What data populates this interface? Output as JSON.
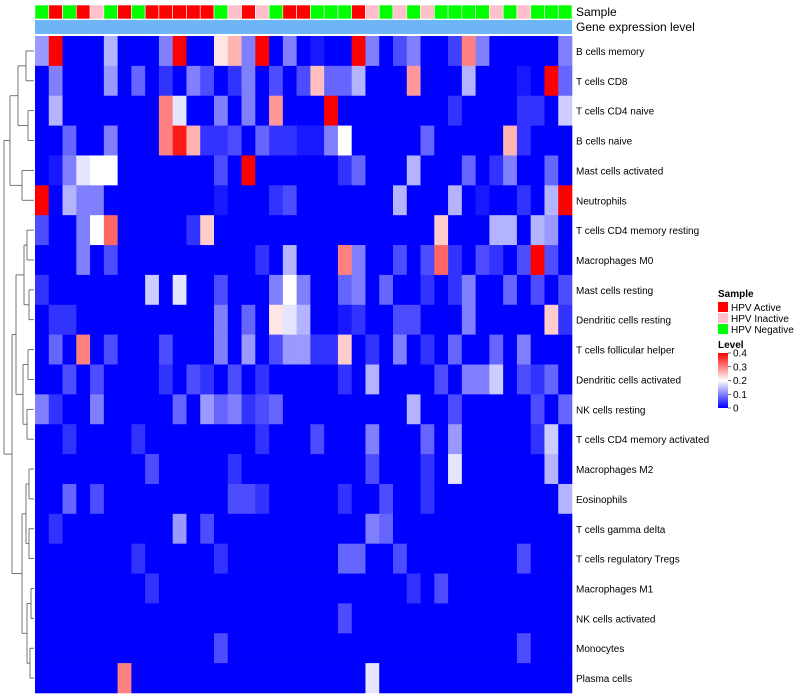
{
  "chart_data": {
    "type": "heatmap",
    "color_scale": {
      "low": "#0000FF",
      "mid": "#FFFFFF",
      "high": "#FF0000",
      "min": 0,
      "max": 0.4,
      "midpoint": 0.2
    },
    "annotations": {
      "sample_label": "Sample",
      "group_label": "Gene expression level",
      "group_color": "#6EB5F5",
      "sample_colors": {
        "HPV Active": "#FF0000",
        "HPV Inactive": "#FFC0CB",
        "HPV Negative": "#00FF00"
      },
      "samples": [
        "HPV Negative",
        "HPV Active",
        "HPV Negative",
        "HPV Active",
        "HPV Inactive",
        "HPV Negative",
        "HPV Active",
        "HPV Negative",
        "HPV Active",
        "HPV Active",
        "HPV Active",
        "HPV Active",
        "HPV Active",
        "HPV Negative",
        "HPV Inactive",
        "HPV Active",
        "HPV Inactive",
        "HPV Negative",
        "HPV Active",
        "HPV Active",
        "HPV Negative",
        "HPV Negative",
        "HPV Negative",
        "HPV Active",
        "HPV Inactive",
        "HPV Negative",
        "HPV Inactive",
        "HPV Negative",
        "HPV Inactive",
        "HPV Negative",
        "HPV Negative",
        "HPV Negative",
        "HPV Negative",
        "HPV Inactive",
        "HPV Negative",
        "HPV Inactive",
        "HPV Negative",
        "HPV Negative",
        "HPV Negative"
      ]
    },
    "rows": [
      "B cells memory",
      "T cells CD8",
      "T cells CD4 naive",
      "B cells naive",
      "Mast cells activated",
      "Neutrophils",
      "T cells CD4 memory resting",
      "Macrophages M0",
      "Mast cells resting",
      "Dendritic cells resting",
      "T cells follicular helper",
      "Dendritic cells activated",
      "NK cells resting",
      "T cells CD4 memory activated",
      "Macrophages M2",
      "Eosinophils",
      "T cells gamma delta",
      "T cells regulatory  Tregs",
      "Macrophages M1",
      "NK cells activated",
      "Monocytes",
      "Plasma cells"
    ],
    "values": [
      [
        0.12,
        0.4,
        0.0,
        0.0,
        0.0,
        0.14,
        0.0,
        0.0,
        0.0,
        0.1,
        0.4,
        0.0,
        0.0,
        0.22,
        0.26,
        0.1,
        0.4,
        0.0,
        0.1,
        0.0,
        0.02,
        0.0,
        0.0,
        0.4,
        0.1,
        0.0,
        0.06,
        0.1,
        0.0,
        0.0,
        0.05,
        0.3,
        0.1,
        0.0,
        0.0,
        0.0,
        0.0,
        0.0,
        0.1
      ],
      [
        0.0,
        0.1,
        0.0,
        0.0,
        0.0,
        0.12,
        0.0,
        0.08,
        0.0,
        0.04,
        0.0,
        0.1,
        0.06,
        0.0,
        0.04,
        0.1,
        0.0,
        0.06,
        0.0,
        0.06,
        0.25,
        0.08,
        0.08,
        0.14,
        0.0,
        0.0,
        0.0,
        0.28,
        0.0,
        0.0,
        0.0,
        0.14,
        0.0,
        0.0,
        0.0,
        0.02,
        0.0,
        0.4,
        0.08
      ],
      [
        0.0,
        0.14,
        0.0,
        0.0,
        0.0,
        0.0,
        0.0,
        0.0,
        0.0,
        0.3,
        0.18,
        0.0,
        0.0,
        0.1,
        0.0,
        0.1,
        0.0,
        0.28,
        0.0,
        0.0,
        0.0,
        0.4,
        0.0,
        0.0,
        0.0,
        0.0,
        0.0,
        0.0,
        0.0,
        0.0,
        0.04,
        0.0,
        0.0,
        0.0,
        0.0,
        0.04,
        0.04,
        0.0,
        0.16
      ],
      [
        0.0,
        0.0,
        0.08,
        0.0,
        0.0,
        0.1,
        0.0,
        0.0,
        0.0,
        0.3,
        0.38,
        0.26,
        0.04,
        0.04,
        0.06,
        0.0,
        0.08,
        0.04,
        0.04,
        0.02,
        0.02,
        0.1,
        0.2,
        0.0,
        0.0,
        0.0,
        0.0,
        0.0,
        0.08,
        0.0,
        0.0,
        0.0,
        0.0,
        0.0,
        0.26,
        0.04,
        0.0,
        0.0,
        0.0
      ],
      [
        0.0,
        0.02,
        0.1,
        0.18,
        0.2,
        0.2,
        0.0,
        0.0,
        0.0,
        0.0,
        0.0,
        0.0,
        0.0,
        0.06,
        0.0,
        0.4,
        0.0,
        0.0,
        0.0,
        0.0,
        0.0,
        0.0,
        0.04,
        0.08,
        0.0,
        0.0,
        0.0,
        0.14,
        0.0,
        0.0,
        0.0,
        0.08,
        0.0,
        0.04,
        0.1,
        0.0,
        0.0,
        0.08,
        0.0
      ],
      [
        0.4,
        0.0,
        0.14,
        0.1,
        0.1,
        0.0,
        0.0,
        0.0,
        0.0,
        0.0,
        0.0,
        0.0,
        0.0,
        0.02,
        0.0,
        0.0,
        0.0,
        0.04,
        0.06,
        0.0,
        0.0,
        0.0,
        0.0,
        0.0,
        0.0,
        0.0,
        0.14,
        0.0,
        0.0,
        0.0,
        0.14,
        0.0,
        0.02,
        0.0,
        0.0,
        0.04,
        0.0,
        0.14,
        0.4
      ],
      [
        0.06,
        0.0,
        0.0,
        0.1,
        0.2,
        0.32,
        0.0,
        0.0,
        0.0,
        0.0,
        0.0,
        0.04,
        0.24,
        0.0,
        0.0,
        0.0,
        0.0,
        0.0,
        0.0,
        0.0,
        0.0,
        0.0,
        0.0,
        0.0,
        0.0,
        0.0,
        0.0,
        0.0,
        0.0,
        0.24,
        0.0,
        0.0,
        0.0,
        0.14,
        0.14,
        0.0,
        0.14,
        0.12,
        0.0
      ],
      [
        0.0,
        0.0,
        0.0,
        0.1,
        0.0,
        0.06,
        0.0,
        0.0,
        0.0,
        0.0,
        0.0,
        0.0,
        0.0,
        0.0,
        0.0,
        0.0,
        0.04,
        0.0,
        0.14,
        0.0,
        0.0,
        0.0,
        0.3,
        0.1,
        0.0,
        0.0,
        0.06,
        0.0,
        0.06,
        0.32,
        0.04,
        0.0,
        0.06,
        0.04,
        0.0,
        0.06,
        0.4,
        0.06,
        0.0
      ],
      [
        0.04,
        0.0,
        0.0,
        0.0,
        0.0,
        0.0,
        0.0,
        0.0,
        0.16,
        0.0,
        0.18,
        0.0,
        0.0,
        0.06,
        0.0,
        0.0,
        0.0,
        0.1,
        0.2,
        0.1,
        0.0,
        0.0,
        0.08,
        0.1,
        0.0,
        0.08,
        0.0,
        0.0,
        0.04,
        0.0,
        0.04,
        0.1,
        0.0,
        0.0,
        0.08,
        0.0,
        0.06,
        0.0,
        0.06
      ],
      [
        0.0,
        0.04,
        0.04,
        0.0,
        0.0,
        0.0,
        0.0,
        0.0,
        0.0,
        0.0,
        0.0,
        0.0,
        0.0,
        0.1,
        0.0,
        0.08,
        0.0,
        0.22,
        0.18,
        0.14,
        0.0,
        0.0,
        0.02,
        0.04,
        0.0,
        0.0,
        0.06,
        0.06,
        0.0,
        0.0,
        0.0,
        0.1,
        0.0,
        0.0,
        0.0,
        0.0,
        0.0,
        0.24,
        0.04
      ],
      [
        0.0,
        0.08,
        0.0,
        0.3,
        0.0,
        0.06,
        0.0,
        0.0,
        0.0,
        0.06,
        0.0,
        0.0,
        0.0,
        0.1,
        0.0,
        0.12,
        0.0,
        0.06,
        0.12,
        0.12,
        0.04,
        0.04,
        0.24,
        0.0,
        0.04,
        0.0,
        0.1,
        0.0,
        0.04,
        0.0,
        0.08,
        0.0,
        0.0,
        0.08,
        0.0,
        0.1,
        0.0,
        0.0,
        0.0
      ],
      [
        0.0,
        0.0,
        0.06,
        0.0,
        0.06,
        0.0,
        0.0,
        0.0,
        0.0,
        0.04,
        0.0,
        0.06,
        0.04,
        0.0,
        0.06,
        0.0,
        0.04,
        0.0,
        0.0,
        0.0,
        0.0,
        0.0,
        0.04,
        0.0,
        0.14,
        0.0,
        0.0,
        0.0,
        0.0,
        0.06,
        0.0,
        0.1,
        0.1,
        0.16,
        0.0,
        0.06,
        0.04,
        0.08,
        0.0
      ],
      [
        0.1,
        0.04,
        0.0,
        0.0,
        0.1,
        0.0,
        0.0,
        0.0,
        0.0,
        0.0,
        0.08,
        0.0,
        0.12,
        0.08,
        0.1,
        0.04,
        0.06,
        0.08,
        0.0,
        0.0,
        0.0,
        0.0,
        0.0,
        0.0,
        0.0,
        0.0,
        0.0,
        0.14,
        0.0,
        0.0,
        0.06,
        0.0,
        0.0,
        0.0,
        0.0,
        0.0,
        0.06,
        0.0,
        0.08
      ],
      [
        0.0,
        0.0,
        0.04,
        0.0,
        0.0,
        0.0,
        0.0,
        0.04,
        0.0,
        0.0,
        0.0,
        0.0,
        0.0,
        0.0,
        0.0,
        0.0,
        0.04,
        0.0,
        0.0,
        0.0,
        0.06,
        0.0,
        0.0,
        0.0,
        0.1,
        0.0,
        0.0,
        0.0,
        0.08,
        0.0,
        0.12,
        0.0,
        0.0,
        0.0,
        0.0,
        0.0,
        0.04,
        0.16,
        0.0
      ],
      [
        0.0,
        0.0,
        0.0,
        0.0,
        0.0,
        0.0,
        0.0,
        0.0,
        0.06,
        0.0,
        0.0,
        0.0,
        0.0,
        0.0,
        0.04,
        0.0,
        0.0,
        0.0,
        0.0,
        0.0,
        0.0,
        0.0,
        0.0,
        0.0,
        0.06,
        0.0,
        0.0,
        0.0,
        0.04,
        0.0,
        0.18,
        0.0,
        0.0,
        0.0,
        0.0,
        0.0,
        0.0,
        0.14,
        0.0
      ],
      [
        0.0,
        0.0,
        0.08,
        0.0,
        0.06,
        0.0,
        0.0,
        0.0,
        0.0,
        0.0,
        0.0,
        0.0,
        0.0,
        0.0,
        0.06,
        0.06,
        0.04,
        0.0,
        0.0,
        0.0,
        0.0,
        0.0,
        0.04,
        0.0,
        0.0,
        0.06,
        0.0,
        0.0,
        0.04,
        0.0,
        0.0,
        0.0,
        0.0,
        0.0,
        0.0,
        0.0,
        0.0,
        0.0,
        0.14
      ],
      [
        0.0,
        0.04,
        0.0,
        0.0,
        0.0,
        0.0,
        0.0,
        0.0,
        0.0,
        0.0,
        0.12,
        0.0,
        0.06,
        0.0,
        0.0,
        0.0,
        0.0,
        0.0,
        0.0,
        0.0,
        0.0,
        0.0,
        0.0,
        0.0,
        0.1,
        0.08,
        0.0,
        0.0,
        0.0,
        0.0,
        0.0,
        0.0,
        0.0,
        0.0,
        0.0,
        0.0,
        0.0,
        0.0,
        0.0
      ],
      [
        0.0,
        0.0,
        0.0,
        0.0,
        0.0,
        0.0,
        0.0,
        0.04,
        0.0,
        0.0,
        0.0,
        0.0,
        0.0,
        0.04,
        0.0,
        0.0,
        0.0,
        0.0,
        0.0,
        0.0,
        0.0,
        0.0,
        0.08,
        0.08,
        0.0,
        0.0,
        0.06,
        0.0,
        0.0,
        0.0,
        0.0,
        0.0,
        0.0,
        0.0,
        0.0,
        0.06,
        0.0,
        0.0,
        0.0
      ],
      [
        0.0,
        0.0,
        0.0,
        0.0,
        0.0,
        0.0,
        0.0,
        0.0,
        0.04,
        0.0,
        0.0,
        0.0,
        0.0,
        0.0,
        0.0,
        0.0,
        0.0,
        0.0,
        0.0,
        0.0,
        0.0,
        0.0,
        0.0,
        0.0,
        0.0,
        0.0,
        0.0,
        0.04,
        0.0,
        0.06,
        0.0,
        0.0,
        0.0,
        0.0,
        0.0,
        0.0,
        0.0,
        0.0,
        0.0
      ],
      [
        0.0,
        0.0,
        0.0,
        0.0,
        0.0,
        0.0,
        0.0,
        0.0,
        0.0,
        0.0,
        0.0,
        0.0,
        0.0,
        0.0,
        0.0,
        0.0,
        0.0,
        0.0,
        0.0,
        0.0,
        0.0,
        0.0,
        0.06,
        0.0,
        0.0,
        0.0,
        0.0,
        0.0,
        0.0,
        0.0,
        0.0,
        0.0,
        0.0,
        0.0,
        0.0,
        0.0,
        0.0,
        0.0,
        0.0
      ],
      [
        0.0,
        0.0,
        0.0,
        0.0,
        0.0,
        0.0,
        0.0,
        0.0,
        0.0,
        0.0,
        0.0,
        0.0,
        0.0,
        0.06,
        0.0,
        0.0,
        0.0,
        0.0,
        0.0,
        0.0,
        0.0,
        0.0,
        0.0,
        0.0,
        0.0,
        0.0,
        0.0,
        0.0,
        0.0,
        0.0,
        0.0,
        0.0,
        0.0,
        0.0,
        0.0,
        0.06,
        0.0,
        0.0,
        0.0
      ],
      [
        0.0,
        0.0,
        0.0,
        0.0,
        0.0,
        0.0,
        0.3,
        0.0,
        0.0,
        0.0,
        0.0,
        0.0,
        0.0,
        0.0,
        0.0,
        0.0,
        0.0,
        0.0,
        0.0,
        0.0,
        0.0,
        0.0,
        0.0,
        0.0,
        0.18,
        0.0,
        0.0,
        0.0,
        0.0,
        0.0,
        0.0,
        0.0,
        0.0,
        0.0,
        0.0,
        0.0,
        0.0,
        0.0,
        0.0
      ]
    ],
    "legend": {
      "sample_title": "Sample",
      "sample_entries": [
        "HPV Active",
        "HPV Inactive",
        "HPV Negative"
      ],
      "level_title": "Level",
      "level_ticks": [
        "0.4",
        "0.3",
        "0.2",
        "0.1",
        "0"
      ],
      "level_tick_values": [
        0.4,
        0.3,
        0.2,
        0.1,
        0
      ]
    }
  }
}
